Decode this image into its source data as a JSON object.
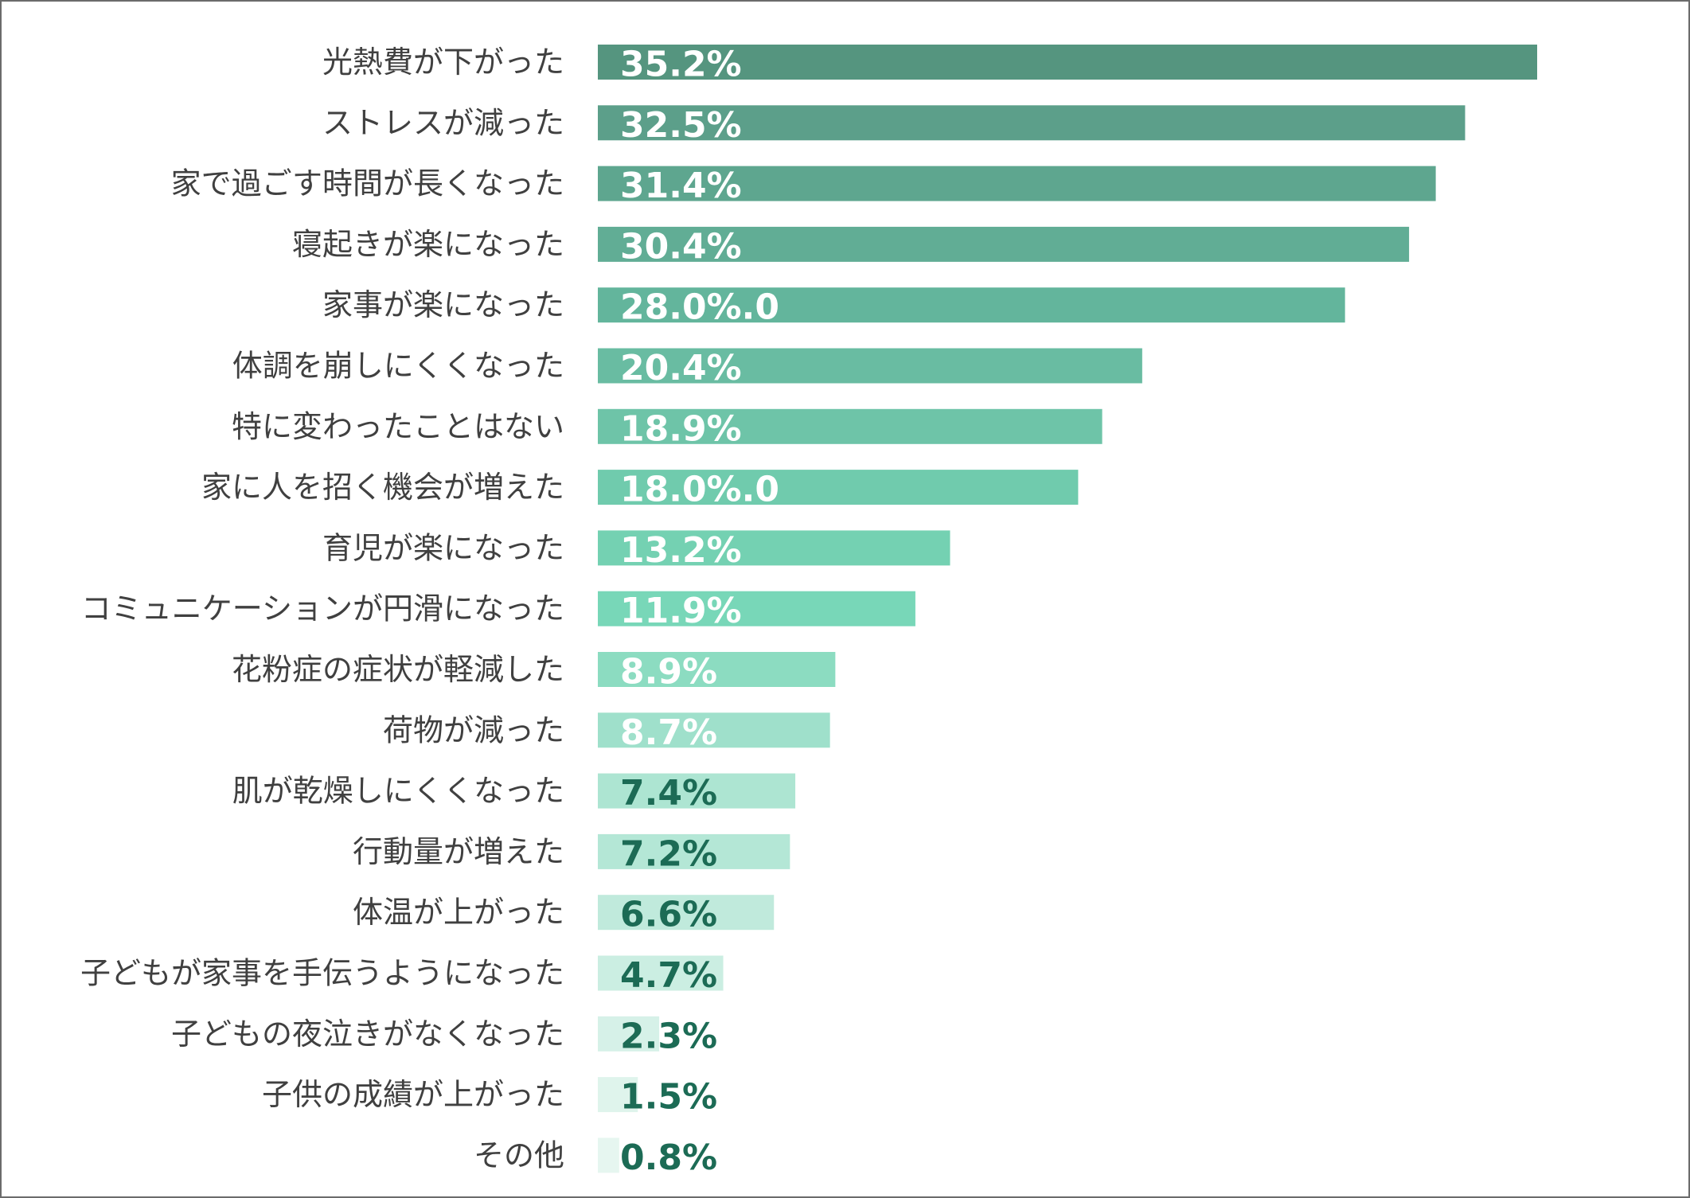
{
  "chart_data": {
    "type": "bar",
    "orientation": "horizontal",
    "title": "",
    "xlabel": "",
    "ylabel": "",
    "xlim": [
      0,
      35.2
    ],
    "grid": false,
    "legend": "none",
    "categories": [
      "光熱費が下がった",
      "ストレスが減った",
      "家で過ごす時間が長くなった",
      "寝起きが楽になった",
      "家事が楽になった",
      "体調を崩しにくくなった",
      "特に変わったことはない",
      "家に人を招く機会が増えた",
      "育児が楽になった",
      "コミュニケーションが円滑になった",
      "花粉症の症状が軽減した",
      "荷物が減った",
      "肌が乾燥しにくくなった",
      "行動量が増えた",
      "体温が上がった",
      "子どもが家事を手伝うようになった",
      "子どもの夜泣きがなくなった",
      "子供の成績が上がった",
      "その他"
    ],
    "values": [
      35.2,
      32.5,
      31.4,
      30.4,
      28.0,
      20.4,
      18.9,
      18.0,
      13.2,
      11.9,
      8.9,
      8.7,
      7.4,
      7.2,
      6.6,
      4.7,
      2.3,
      1.5,
      0.8
    ],
    "data_labels": [
      "35.2%",
      "32.5%",
      "31.4%",
      "30.4%",
      "28.0%.0",
      "20.4%",
      "18.9%",
      "18.0%.0",
      "13.2%",
      "11.9%",
      "8.9%",
      "8.7%",
      "7.4%",
      "7.2%",
      "6.6%",
      "4.7%",
      "2.3%",
      "1.5%",
      "0.8%"
    ],
    "bar_colors": [
      "#55957f",
      "#5c9f8a",
      "#5ea68f",
      "#61ad95",
      "#63b59c",
      "#69bca2",
      "#6ec4a8",
      "#70cbad",
      "#74d1b2",
      "#78d7b8",
      "#8cdcc1",
      "#9fe0cb",
      "#ade5d2",
      "#b4e7d6",
      "#c0eadc",
      "#cbeee2",
      "#d6f1e8",
      "#dff4ec",
      "#e6f6f0"
    ],
    "label_colors": {
      "light": "#ffffff",
      "dark": "#1c6b55"
    },
    "category_label_color": "#404040",
    "frame_border_color": "#6b6b6b"
  }
}
